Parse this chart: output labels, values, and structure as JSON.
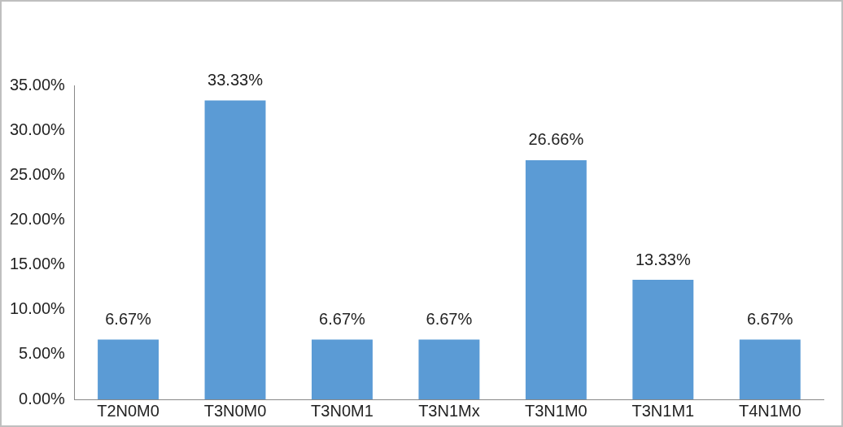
{
  "chart_data": {
    "type": "bar",
    "categories": [
      "T2N0M0",
      "T3N0M0",
      "T3N0M1",
      "T3N1Mx",
      "T3N1M0",
      "T3N1M1",
      "T4N1M0"
    ],
    "values": [
      6.67,
      33.33,
      6.67,
      6.67,
      26.66,
      13.33,
      6.67
    ],
    "value_labels": [
      "6.67%",
      "33.33%",
      "6.67%",
      "6.67%",
      "26.66%",
      "13.33%",
      "6.67%"
    ],
    "color": "#5b9bd5",
    "ylim": [
      0,
      35
    ],
    "yticks": [
      {
        "value": 0,
        "label": "0.00%"
      },
      {
        "value": 5,
        "label": "5.00%"
      },
      {
        "value": 10,
        "label": "10.00%"
      },
      {
        "value": 15,
        "label": "15.00%"
      },
      {
        "value": 20,
        "label": "20.00%"
      },
      {
        "value": 25,
        "label": "25.00%"
      },
      {
        "value": 30,
        "label": "30.00%"
      },
      {
        "value": 35,
        "label": "35.00%"
      }
    ],
    "grid": false,
    "legend": false
  }
}
